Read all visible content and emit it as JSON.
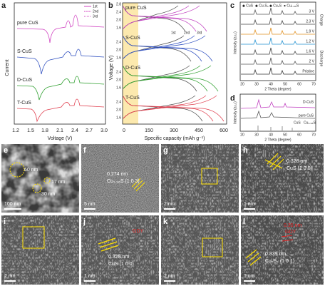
{
  "panels": {
    "a": {
      "label": "a",
      "legend": [
        "1st",
        "2nd",
        "3rd"
      ],
      "samples": [
        "pure CuS",
        "S-CuS",
        "D-CuS",
        "T-CuS"
      ],
      "ylabel": "Current",
      "xlabel": "Voltage (V)",
      "xticks": [
        "1.2",
        "1.5",
        "1.8",
        "2.1",
        "2.4",
        "2.7",
        "3.0"
      ]
    },
    "b": {
      "label": "b",
      "samples": [
        "pure CuS",
        "S-CuS",
        "D-CuS",
        "T-CuS"
      ],
      "yticks": [
        "2.8",
        "2.4",
        "2.0",
        "1.6"
      ],
      "ylabel": "Voltage (V)",
      "xlabel": "Specific capacity (mAh g⁻¹)",
      "xticks": [
        "0",
        "150",
        "300",
        "450",
        "600"
      ],
      "legend": [
        "1st",
        "2nd",
        "3rd"
      ]
    },
    "c": {
      "label": "c",
      "legend": [
        "◆ CuS",
        "◆ Cu₇S₄",
        "◆ Cu₂S",
        "● Cu₁.₉₆S"
      ],
      "states": [
        "3 V",
        "2.3 V",
        "1.9 V",
        "1.2 V",
        "1.6 V",
        "2 V",
        "Pristine"
      ],
      "charge": "Charge",
      "discharge": "Discharge",
      "ylabel": "Intensity (a.u.)",
      "xlabel": "2 Theta (degree)",
      "xticks": [
        "20",
        "30",
        "40",
        "50",
        "60",
        "70"
      ]
    },
    "d": {
      "label": "d",
      "samples": [
        "D-CuS",
        "pure CuS"
      ],
      "refs": [
        "CuS",
        "Cu₁.₉₆S"
      ],
      "ylabel": "Intensity (a.u.)",
      "xlabel": "2 Theta (degree)",
      "xticks": [
        "20",
        "30",
        "40",
        "50",
        "60",
        "70"
      ]
    },
    "e": {
      "label": "e",
      "notes": [
        "60 nm",
        "30 nm",
        "17 nm"
      ],
      "scale": "100 nm"
    },
    "f": {
      "label": "f",
      "spacing": "0.274 nm",
      "plane": "Cu₁.₉₆S (1 0 3)",
      "scale": "5 nm"
    },
    "g": {
      "label": "g",
      "scale": "2 nm"
    },
    "h": {
      "label": "h",
      "spacing": "0.328 nm",
      "plane": "CuS (1 0 0)",
      "scale": "1 nm"
    },
    "i": {
      "label": "i",
      "scale": "2 nm"
    },
    "j": {
      "label": "j",
      "tag": "GDY",
      "spacing": "0.328 nm",
      "plane": "CuS (1 0 0)",
      "scale": "1 nm"
    },
    "k": {
      "label": "k",
      "scale": "2 nm"
    },
    "l": {
      "label": "l",
      "tagspacing": "0.35 nm",
      "tag": "GDY",
      "spacing": "0.339 nm",
      "plane": "Cu₇S₄ (1 0 1)",
      "scale": "1 nm"
    }
  }
}
